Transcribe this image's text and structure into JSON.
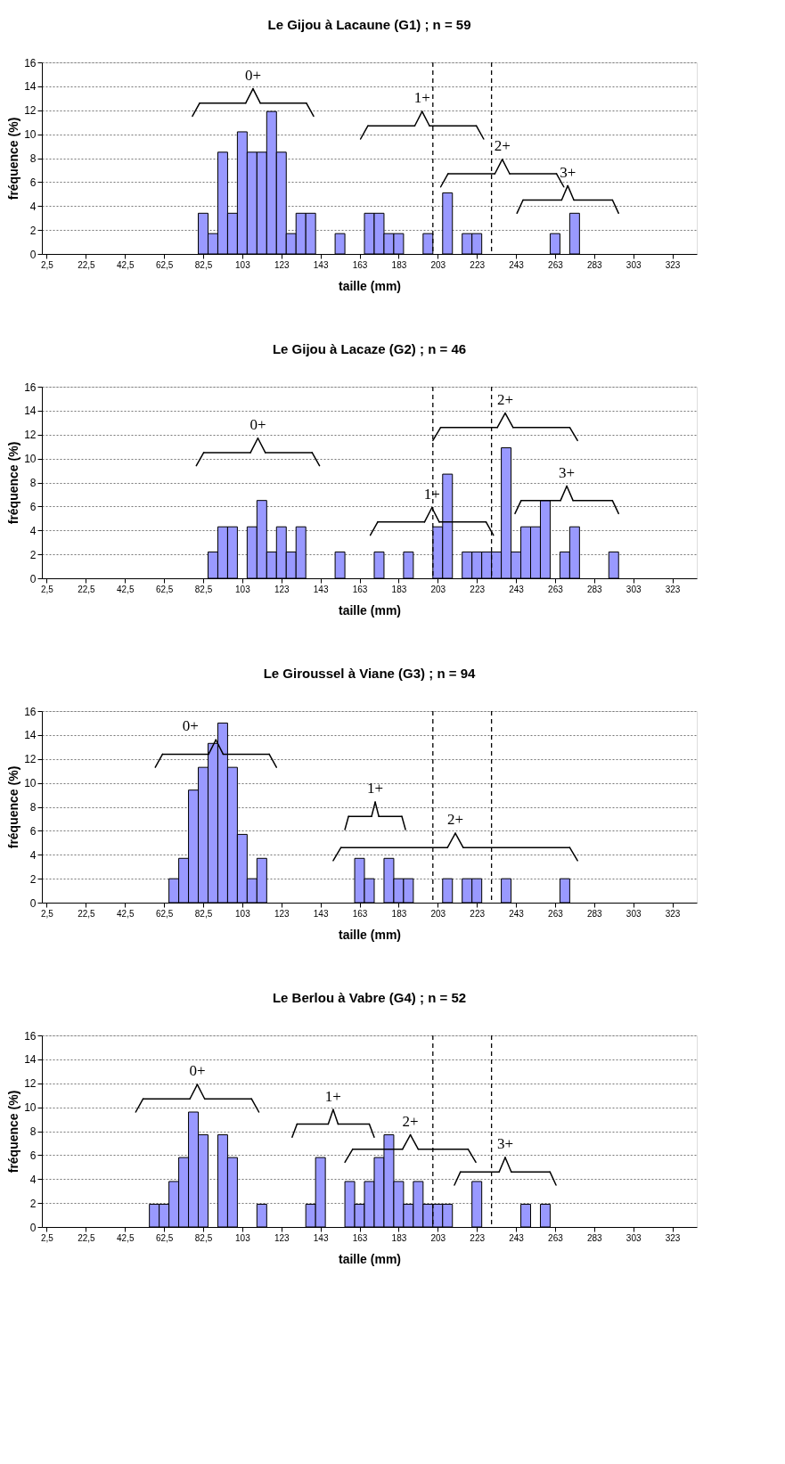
{
  "chart_data": [
    {
      "type": "histogram",
      "title": "Le Gijou à Lacaune (G1) ; n = 59",
      "xlabel": "taille (mm)",
      "ylabel": "fréquence (%)",
      "color": "#9999ff",
      "grid": "y",
      "bins": [
        0,
        5,
        10,
        15,
        20,
        25,
        30,
        35,
        40,
        45,
        50,
        55,
        60,
        65,
        70,
        75,
        80,
        85,
        90,
        95,
        100,
        105,
        110,
        115,
        120,
        125,
        130,
        135,
        140,
        145,
        150,
        155,
        160,
        165,
        170,
        175,
        180,
        185,
        190,
        195,
        200,
        205,
        210,
        215,
        220,
        225,
        230,
        235,
        240,
        245,
        250,
        255,
        260,
        265,
        270,
        275,
        280,
        285,
        290,
        295,
        300,
        305,
        310,
        315,
        320,
        325,
        330,
        335
      ],
      "values": [
        0,
        0,
        0,
        0,
        0,
        0,
        0,
        0,
        0,
        0,
        0,
        0,
        0,
        0,
        0,
        0,
        3.4,
        1.7,
        8.5,
        3.4,
        10.2,
        8.5,
        8.5,
        11.9,
        8.5,
        1.7,
        3.4,
        3.4,
        0,
        0,
        1.7,
        0,
        0,
        3.4,
        3.4,
        1.7,
        1.7,
        0,
        0,
        1.7,
        0,
        5.1,
        0,
        1.7,
        1.7,
        0,
        0,
        0,
        0,
        0,
        0,
        0,
        1.7,
        0,
        3.4,
        0,
        0,
        0,
        0,
        0,
        0,
        0,
        0,
        0,
        0,
        0,
        0
      ],
      "xlim": [
        0,
        335
      ],
      "ylim": [
        0,
        16
      ],
      "yticks": [
        0,
        2,
        4,
        6,
        8,
        10,
        12,
        14,
        16
      ],
      "xticks": [
        {
          "value": 2.5,
          "label": "2,5"
        },
        {
          "value": 22.5,
          "label": "22,5"
        },
        {
          "value": 42.5,
          "label": "42,5"
        },
        {
          "value": 62.5,
          "label": "62,5"
        },
        {
          "value": 82.5,
          "label": "82,5"
        },
        {
          "value": 102.5,
          "label": "103"
        },
        {
          "value": 122.5,
          "label": "123"
        },
        {
          "value": 142.5,
          "label": "143"
        },
        {
          "value": 162.5,
          "label": "163"
        },
        {
          "value": 182.5,
          "label": "183"
        },
        {
          "value": 202.5,
          "label": "203"
        },
        {
          "value": 222.5,
          "label": "223"
        },
        {
          "value": 242.5,
          "label": "243"
        },
        {
          "value": 262.5,
          "label": "263"
        },
        {
          "value": 282.5,
          "label": "283"
        },
        {
          "value": 302.5,
          "label": "303"
        },
        {
          "value": 322.5,
          "label": "323"
        }
      ],
      "ref_lines": [
        {
          "axis": "x",
          "value": 200,
          "line_style": "dashed"
        },
        {
          "axis": "x",
          "value": 230,
          "line_style": "dashed"
        }
      ],
      "annotations": [
        "0+",
        "1+",
        "2+",
        "3+"
      ]
    },
    {
      "type": "histogram",
      "title": "Le Gijou à Lacaze (G2) ; n = 46",
      "xlabel": "taille (mm)",
      "ylabel": "fréquence (%)",
      "color": "#9999ff",
      "grid": "y",
      "bins": [
        0,
        5,
        10,
        15,
        20,
        25,
        30,
        35,
        40,
        45,
        50,
        55,
        60,
        65,
        70,
        75,
        80,
        85,
        90,
        95,
        100,
        105,
        110,
        115,
        120,
        125,
        130,
        135,
        140,
        145,
        150,
        155,
        160,
        165,
        170,
        175,
        180,
        185,
        190,
        195,
        200,
        205,
        210,
        215,
        220,
        225,
        230,
        235,
        240,
        245,
        250,
        255,
        260,
        265,
        270,
        275,
        280,
        285,
        290,
        295,
        300,
        305,
        310,
        315,
        320,
        325,
        330,
        335
      ],
      "values": [
        0,
        0,
        0,
        0,
        0,
        0,
        0,
        0,
        0,
        0,
        0,
        0,
        0,
        0,
        0,
        0,
        0,
        2.2,
        4.3,
        4.3,
        0,
        4.3,
        6.5,
        2.2,
        4.3,
        2.2,
        4.3,
        0,
        0,
        0,
        2.2,
        0,
        0,
        0,
        2.2,
        0,
        0,
        2.2,
        0,
        0,
        4.3,
        8.7,
        0,
        2.2,
        2.2,
        2.2,
        2.2,
        10.9,
        2.2,
        4.3,
        4.3,
        6.5,
        0,
        2.2,
        4.3,
        0,
        0,
        0,
        2.2,
        0,
        0,
        0,
        0,
        0,
        0,
        0,
        0
      ],
      "xlim": [
        0,
        335
      ],
      "ylim": [
        0,
        16
      ],
      "yticks": [
        0,
        2,
        4,
        6,
        8,
        10,
        12,
        14,
        16
      ],
      "xticks": [
        {
          "value": 2.5,
          "label": "2,5"
        },
        {
          "value": 22.5,
          "label": "22,5"
        },
        {
          "value": 42.5,
          "label": "42,5"
        },
        {
          "value": 62.5,
          "label": "62,5"
        },
        {
          "value": 82.5,
          "label": "82,5"
        },
        {
          "value": 102.5,
          "label": "103"
        },
        {
          "value": 122.5,
          "label": "123"
        },
        {
          "value": 142.5,
          "label": "143"
        },
        {
          "value": 162.5,
          "label": "163"
        },
        {
          "value": 182.5,
          "label": "183"
        },
        {
          "value": 202.5,
          "label": "203"
        },
        {
          "value": 222.5,
          "label": "223"
        },
        {
          "value": 242.5,
          "label": "243"
        },
        {
          "value": 262.5,
          "label": "263"
        },
        {
          "value": 282.5,
          "label": "283"
        },
        {
          "value": 302.5,
          "label": "303"
        },
        {
          "value": 322.5,
          "label": "323"
        }
      ],
      "ref_lines": [
        {
          "axis": "x",
          "value": 200,
          "line_style": "dashed"
        },
        {
          "axis": "x",
          "value": 230,
          "line_style": "dashed"
        }
      ],
      "annotations": [
        "0+",
        "1+",
        "2+",
        "3+"
      ]
    },
    {
      "type": "histogram",
      "title": "Le Giroussel à Viane (G3) ; n = 94",
      "xlabel": "taille (mm)",
      "ylabel": "fréquence (%)",
      "color": "#9999ff",
      "grid": "y",
      "bins": [
        0,
        5,
        10,
        15,
        20,
        25,
        30,
        35,
        40,
        45,
        50,
        55,
        60,
        65,
        70,
        75,
        80,
        85,
        90,
        95,
        100,
        105,
        110,
        115,
        120,
        125,
        130,
        135,
        140,
        145,
        150,
        155,
        160,
        165,
        170,
        175,
        180,
        185,
        190,
        195,
        200,
        205,
        210,
        215,
        220,
        225,
        230,
        235,
        240,
        245,
        250,
        255,
        260,
        265,
        270,
        275,
        280,
        285,
        290,
        295,
        300,
        305,
        310,
        315,
        320,
        325,
        330,
        335
      ],
      "values": [
        0,
        0,
        0,
        0,
        0,
        0,
        0,
        0,
        0,
        0,
        0,
        0,
        0,
        2.0,
        3.7,
        9.4,
        11.3,
        13.3,
        15.0,
        11.3,
        5.7,
        2.0,
        3.7,
        0,
        0,
        0,
        0,
        0,
        0,
        0,
        0,
        0,
        3.7,
        2.0,
        0,
        3.7,
        2.0,
        2.0,
        0,
        0,
        0,
        2.0,
        0,
        2.0,
        2.0,
        0,
        0,
        2.0,
        0,
        0,
        0,
        0,
        0,
        2.0,
        0,
        0,
        0,
        0,
        0,
        0,
        0,
        0,
        0,
        0,
        0,
        0,
        0
      ],
      "xlim": [
        0,
        335
      ],
      "ylim": [
        0,
        16
      ],
      "yticks": [
        0,
        2,
        4,
        6,
        8,
        10,
        12,
        14,
        16
      ],
      "xticks": [
        {
          "value": 2.5,
          "label": "2,5"
        },
        {
          "value": 22.5,
          "label": "22,5"
        },
        {
          "value": 42.5,
          "label": "42,5"
        },
        {
          "value": 62.5,
          "label": "62,5"
        },
        {
          "value": 82.5,
          "label": "82,5"
        },
        {
          "value": 102.5,
          "label": "103"
        },
        {
          "value": 122.5,
          "label": "123"
        },
        {
          "value": 142.5,
          "label": "143"
        },
        {
          "value": 162.5,
          "label": "163"
        },
        {
          "value": 182.5,
          "label": "183"
        },
        {
          "value": 202.5,
          "label": "203"
        },
        {
          "value": 222.5,
          "label": "223"
        },
        {
          "value": 242.5,
          "label": "243"
        },
        {
          "value": 262.5,
          "label": "263"
        },
        {
          "value": 282.5,
          "label": "283"
        },
        {
          "value": 302.5,
          "label": "303"
        },
        {
          "value": 322.5,
          "label": "323"
        }
      ],
      "ref_lines": [
        {
          "axis": "x",
          "value": 200,
          "line_style": "dashed"
        },
        {
          "axis": "x",
          "value": 230,
          "line_style": "dashed"
        }
      ],
      "annotations": [
        "0+",
        "1+",
        "2+"
      ]
    },
    {
      "type": "histogram",
      "title": "Le Berlou à Vabre (G4) ; n = 52",
      "xlabel": "taille (mm)",
      "ylabel": "fréquence (%)",
      "color": "#9999ff",
      "grid": "y",
      "bins": [
        0,
        5,
        10,
        15,
        20,
        25,
        30,
        35,
        40,
        45,
        50,
        55,
        60,
        65,
        70,
        75,
        80,
        85,
        90,
        95,
        100,
        105,
        110,
        115,
        120,
        125,
        130,
        135,
        140,
        145,
        150,
        155,
        160,
        165,
        170,
        175,
        180,
        185,
        190,
        195,
        200,
        205,
        210,
        215,
        220,
        225,
        230,
        235,
        240,
        245,
        250,
        255,
        260,
        265,
        270,
        275,
        280,
        285,
        290,
        295,
        300,
        305,
        310,
        315,
        320,
        325,
        330,
        335
      ],
      "values": [
        0,
        0,
        0,
        0,
        0,
        0,
        0,
        0,
        0,
        0,
        0,
        1.9,
        1.9,
        3.8,
        5.8,
        9.6,
        7.7,
        0,
        7.7,
        5.8,
        0,
        0,
        1.9,
        0,
        0,
        0,
        0,
        1.9,
        5.8,
        0,
        0,
        3.8,
        1.9,
        3.8,
        5.8,
        7.7,
        3.8,
        1.9,
        3.8,
        1.9,
        1.9,
        1.9,
        0,
        0,
        3.8,
        0,
        0,
        0,
        0,
        1.9,
        0,
        1.9,
        0,
        0,
        0,
        0,
        0,
        0,
        0,
        0,
        0,
        0,
        0,
        0,
        0,
        0,
        0
      ],
      "xlim": [
        0,
        335
      ],
      "ylim": [
        0,
        16
      ],
      "yticks": [
        0,
        2,
        4,
        6,
        8,
        10,
        12,
        14,
        16
      ],
      "xticks": [
        {
          "value": 2.5,
          "label": "2,5"
        },
        {
          "value": 22.5,
          "label": "22,5"
        },
        {
          "value": 42.5,
          "label": "42,5"
        },
        {
          "value": 62.5,
          "label": "62,5"
        },
        {
          "value": 82.5,
          "label": "82,5"
        },
        {
          "value": 102.5,
          "label": "103"
        },
        {
          "value": 122.5,
          "label": "123"
        },
        {
          "value": 142.5,
          "label": "143"
        },
        {
          "value": 162.5,
          "label": "163"
        },
        {
          "value": 182.5,
          "label": "183"
        },
        {
          "value": 202.5,
          "label": "203"
        },
        {
          "value": 222.5,
          "label": "223"
        },
        {
          "value": 242.5,
          "label": "243"
        },
        {
          "value": 262.5,
          "label": "263"
        },
        {
          "value": 282.5,
          "label": "283"
        },
        {
          "value": 302.5,
          "label": "303"
        },
        {
          "value": 322.5,
          "label": "323"
        }
      ],
      "ref_lines": [
        {
          "axis": "x",
          "value": 200,
          "line_style": "dashed"
        },
        {
          "axis": "x",
          "value": 230,
          "line_style": "dashed"
        }
      ],
      "annotations": [
        "0+",
        "1+",
        "2+",
        "3+"
      ]
    }
  ]
}
